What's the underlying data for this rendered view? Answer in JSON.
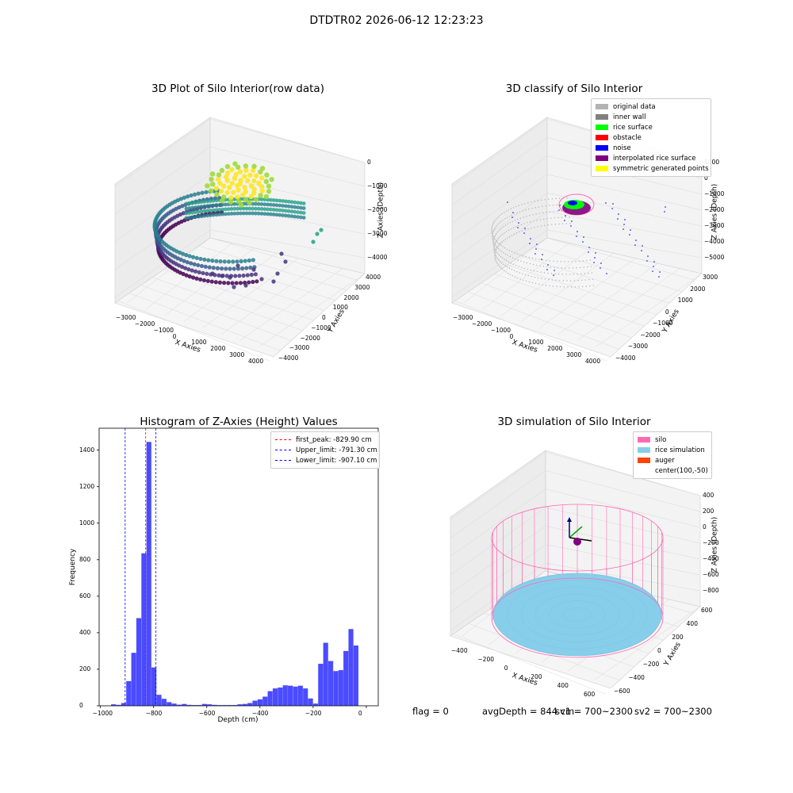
{
  "figure": {
    "suptitle": "DTDTR02 2026-06-12 12:23:23"
  },
  "chart_data": [
    {
      "type": "scatter",
      "projection": "3d",
      "title": "3D Plot of Silo Interior(row data)",
      "xlabel": "X Axies",
      "ylabel": "Y Axies",
      "zlabel": "Z Axies (Depth)",
      "xticks": [
        "−3000",
        "−2000",
        "−1000",
        "0",
        "1000",
        "2000",
        "3000",
        "4000"
      ],
      "yticks": [
        "−4000",
        "−3000",
        "−2000",
        "−1000",
        "0",
        "1000",
        "2000",
        "3000",
        "4000"
      ],
      "zticks": [
        "0",
        "−1000",
        "−2000",
        "−3000",
        "−4000"
      ],
      "xlim": [
        -3500,
        4000
      ],
      "ylim": [
        -4000,
        4000
      ],
      "zlim": [
        -4500,
        200
      ],
      "colormap": "viridis"
    },
    {
      "type": "scatter",
      "projection": "3d",
      "title": "3D classify of Silo Interior",
      "xlabel": "X Axies",
      "ylabel": "Y Axies",
      "zlabel": "Z Axies (Depth)",
      "xticks": [
        "−3000",
        "−2000",
        "−1000",
        "0",
        "1000",
        "2000",
        "3000",
        "4000"
      ],
      "yticks": [
        "−4000",
        "−3000",
        "−2000",
        "−1000",
        "0",
        "1000",
        "2000",
        "3000"
      ],
      "zticks": [
        "1000",
        "0",
        "−1000",
        "−2000",
        "−3000",
        "−4000",
        "−5000"
      ],
      "legend_position": "top-right",
      "series": [
        {
          "name": "original data",
          "color": "#b3b3b3"
        },
        {
          "name": "inner wall",
          "color": "#808080"
        },
        {
          "name": "rice surface",
          "color": "#00ff00"
        },
        {
          "name": "obstacle",
          "color": "#ff0000"
        },
        {
          "name": "noise",
          "color": "#0000ff"
        },
        {
          "name": "interpolated rice surface",
          "color": "#800080"
        },
        {
          "name": "symmetric generated points",
          "color": "#ffff00"
        }
      ]
    },
    {
      "type": "histogram",
      "title": "Histogram of Z-Axies (Height) Values",
      "xlabel": "Depth (cm)",
      "ylabel": "Frequency",
      "xlim": [
        -1005,
        45
      ],
      "ylim": [
        0,
        1520
      ],
      "xticks": [
        -1000,
        -800,
        -600,
        -400,
        -200,
        0
      ],
      "yticks": [
        0,
        200,
        400,
        600,
        800,
        1000,
        1200,
        1400
      ],
      "bar_color": "#4b4bff",
      "bin_width": 19,
      "bins": [
        {
          "x": -960,
          "count": 8
        },
        {
          "x": -941,
          "count": 5
        },
        {
          "x": -922,
          "count": 15
        },
        {
          "x": -903,
          "count": 135
        },
        {
          "x": -884,
          "count": 290
        },
        {
          "x": -865,
          "count": 480
        },
        {
          "x": -846,
          "count": 835
        },
        {
          "x": -827,
          "count": 1445
        },
        {
          "x": -808,
          "count": 210
        },
        {
          "x": -789,
          "count": 60
        },
        {
          "x": -770,
          "count": 38
        },
        {
          "x": -751,
          "count": 20
        },
        {
          "x": -732,
          "count": 12
        },
        {
          "x": -713,
          "count": 6
        },
        {
          "x": -694,
          "count": 10
        },
        {
          "x": -675,
          "count": 5
        },
        {
          "x": -656,
          "count": 4
        },
        {
          "x": -637,
          "count": 4
        },
        {
          "x": -618,
          "count": 10
        },
        {
          "x": -599,
          "count": 8
        },
        {
          "x": -580,
          "count": 5
        },
        {
          "x": -561,
          "count": 4
        },
        {
          "x": -542,
          "count": 4
        },
        {
          "x": -523,
          "count": 4
        },
        {
          "x": -504,
          "count": 4
        },
        {
          "x": -485,
          "count": 8
        },
        {
          "x": -466,
          "count": 10
        },
        {
          "x": -447,
          "count": 15
        },
        {
          "x": -428,
          "count": 28
        },
        {
          "x": -409,
          "count": 35
        },
        {
          "x": -390,
          "count": 50
        },
        {
          "x": -371,
          "count": 80
        },
        {
          "x": -352,
          "count": 95
        },
        {
          "x": -333,
          "count": 100
        },
        {
          "x": -314,
          "count": 112
        },
        {
          "x": -295,
          "count": 110
        },
        {
          "x": -276,
          "count": 105
        },
        {
          "x": -257,
          "count": 110
        },
        {
          "x": -238,
          "count": 95
        },
        {
          "x": -219,
          "count": 40
        },
        {
          "x": -200,
          "count": 12
        },
        {
          "x": -181,
          "count": 230
        },
        {
          "x": -162,
          "count": 345
        },
        {
          "x": -143,
          "count": 245
        },
        {
          "x": -124,
          "count": 190
        },
        {
          "x": -105,
          "count": 195
        },
        {
          "x": -86,
          "count": 300
        },
        {
          "x": -67,
          "count": 420
        },
        {
          "x": -48,
          "count": 330
        }
      ],
      "vlines": [
        {
          "label": "first_peak: -829.90 cm",
          "x": -829.9,
          "color": "#ff0000"
        },
        {
          "label": "Upper_limit: -791.30 cm",
          "x": -791.3,
          "color": "#0000ff"
        },
        {
          "label": "Lower_limit: -907.10 cm",
          "x": -907.1,
          "color": "#0000ff"
        }
      ],
      "legend_position": "top-right"
    },
    {
      "type": "surface",
      "projection": "3d",
      "title": "3D simulation of Silo Interior",
      "xlabel": "X Axies",
      "ylabel": "Y Axies",
      "zlabel": "Z Axies (Depth)",
      "xticks": [
        "−400",
        "−200",
        "0",
        "200",
        "400",
        "600"
      ],
      "yticks": [
        "−600",
        "−400",
        "−200",
        "0",
        "200",
        "400",
        "600"
      ],
      "zticks": [
        "400",
        "200",
        "0",
        "−200",
        "−400",
        "−600",
        "−800"
      ],
      "legend_position": "top-right",
      "series": [
        {
          "name": "silo",
          "color": "#ff69b4"
        },
        {
          "name": "rice simulation",
          "color": "#87ceeb"
        },
        {
          "name": "auger",
          "color": "#ff4500"
        },
        {
          "name": "center(100,-50)",
          "color": ""
        }
      ]
    }
  ],
  "status": {
    "flag": "flag = 0",
    "avg_depth": "avgDepth = 844 cm",
    "sv1": "sv1 = 700~2300",
    "sv2": "sv2 = 700~2300"
  }
}
